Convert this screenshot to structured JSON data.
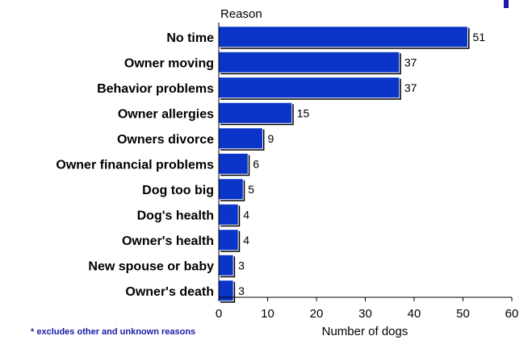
{
  "chart_data": {
    "type": "bar",
    "orientation": "horizontal",
    "categories": [
      "No time",
      "Owner moving",
      "Behavior problems",
      "Owner allergies",
      "Owners divorce",
      "Owner financial problems",
      "Dog too big",
      "Dog's health",
      "Owner's health",
      "New spouse or baby",
      "Owner's death"
    ],
    "values": [
      51,
      37,
      37,
      15,
      9,
      6,
      5,
      4,
      4,
      3,
      3
    ],
    "data_labels": [
      "51",
      "37",
      "37",
      "15",
      "9",
      "6",
      "5",
      "4",
      "4",
      "3",
      "3"
    ],
    "xlim": [
      0,
      60
    ],
    "xticks": [
      0,
      10,
      20,
      30,
      40,
      50,
      60
    ],
    "xtick_labels": [
      "0",
      "10",
      "20",
      "30",
      "40",
      "50",
      "60"
    ],
    "xlabel": "Number of dogs",
    "ylabel": "Reason",
    "bar_color": "#0a35c8",
    "grid": false,
    "legend": "none",
    "footnote": "* excludes other and unknown reasons"
  }
}
